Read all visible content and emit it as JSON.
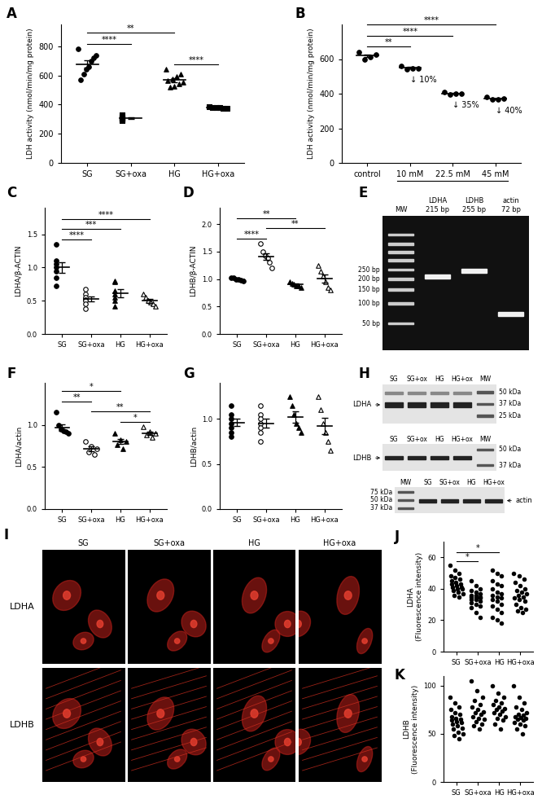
{
  "chart_data": [
    {
      "panel": "A",
      "type": "scatter",
      "color": "#000000",
      "ylabel": "LDH activity (nmol/min/mg protein)",
      "ylim": [
        0,
        950
      ],
      "yticks": [
        0,
        200,
        400,
        600,
        800
      ],
      "series": [
        {
          "name": "SG",
          "marker": "circle",
          "values": [
            780,
            740,
            720,
            700,
            660,
            640,
            610,
            570
          ],
          "mean": 677,
          "error": 25
        },
        {
          "name": "SG+oxa",
          "marker": "square",
          "values": [
            330,
            315,
            310,
            305,
            300,
            295,
            290
          ],
          "mean": 306,
          "error": 5
        },
        {
          "name": "HG",
          "marker": "triangle",
          "values": [
            640,
            610,
            590,
            575,
            565,
            555,
            540,
            525,
            520
          ],
          "mean": 569,
          "error": 13
        },
        {
          "name": "HG+oxa",
          "marker": "square",
          "values": [
            385,
            382,
            380,
            378,
            376,
            374
          ],
          "mean": 379,
          "error": 2
        }
      ],
      "significance": [
        {
          "from": 0,
          "to": 1,
          "label": "****"
        },
        {
          "from": 2,
          "to": 3,
          "label": "****"
        },
        {
          "from": 0,
          "to": 2,
          "label": "**"
        }
      ]
    },
    {
      "panel": "B",
      "type": "scatter",
      "color": "#000000",
      "ylabel": "LDH activity (nmol/min/mg protein)",
      "ylim": [
        0,
        800
      ],
      "yticks": [
        0,
        200,
        400,
        600
      ],
      "series": [
        {
          "name": "control",
          "marker": "circle",
          "values": [
            640,
            625,
            610,
            600
          ],
          "mean": 619,
          "error": 9
        },
        {
          "name": "10 mM",
          "marker": "circle",
          "values": [
            560,
            548,
            545,
            543
          ],
          "mean": 549,
          "error": 4
        },
        {
          "name": "22.5 mM",
          "marker": "circle",
          "values": [
            410,
            400,
            398,
            395
          ],
          "mean": 401,
          "error": 3
        },
        {
          "name": "45 mM",
          "marker": "circle",
          "values": [
            380,
            372,
            368,
            365
          ],
          "mean": 371,
          "error": 3
        }
      ],
      "annotations": [
        {
          "series": 1,
          "text": "↓ 10%"
        },
        {
          "series": 2,
          "text": "↓ 35%"
        },
        {
          "series": 3,
          "text": "↓ 40%"
        }
      ],
      "significance": [
        {
          "from": 0,
          "to": 1,
          "label": "**"
        },
        {
          "from": 0,
          "to": 2,
          "label": "****"
        },
        {
          "from": 0,
          "to": 3,
          "label": "****"
        }
      ]
    },
    {
      "panel": "C",
      "type": "scatter",
      "color": "#000000",
      "ylabel": "LDHA/β-ACTIN",
      "ylim": [
        0,
        1.9
      ],
      "yticks": [
        {
          "value": 0,
          "label": "0.0"
        },
        0.5,
        {
          "value": 1,
          "label": "1.0"
        },
        1.5
      ],
      "series": [
        {
          "name": "SG",
          "marker": "circle",
          "values": [
            1.35,
            1.1,
            1.05,
            1.0,
            0.95,
            0.85,
            0.72
          ],
          "mean": 1.0,
          "error": 0.08
        },
        {
          "name": "SG+oxa",
          "marker": "open circle",
          "values": [
            0.68,
            0.6,
            0.55,
            0.52,
            0.5,
            0.45,
            0.38
          ],
          "mean": 0.53,
          "error": 0.04
        },
        {
          "name": "HG",
          "marker": "triangle",
          "values": [
            0.8,
            0.78,
            0.65,
            0.6,
            0.55,
            0.5,
            0.42
          ],
          "mean": 0.61,
          "error": 0.06
        },
        {
          "name": "HG+oxa",
          "marker": "open triangle",
          "values": [
            0.6,
            0.55,
            0.5,
            0.48,
            0.45,
            0.42
          ],
          "mean": 0.5,
          "error": 0.03
        }
      ],
      "significance": [
        {
          "from": 0,
          "to": 1,
          "label": "****"
        },
        {
          "from": 0,
          "to": 2,
          "label": "***"
        },
        {
          "from": 0,
          "to": 3,
          "label": "****"
        }
      ]
    },
    {
      "panel": "D",
      "type": "scatter",
      "color": "#000000",
      "ylabel": "LDHB/β-ACTIN",
      "ylim": [
        0,
        2.3
      ],
      "yticks": [
        {
          "value": 0,
          "label": "0.0"
        },
        0.5,
        {
          "value": 1,
          "label": "1.0"
        },
        1.5,
        {
          "value": 2,
          "label": "2.0"
        }
      ],
      "series": [
        {
          "name": "SG",
          "marker": "circle",
          "values": [
            1.03,
            1.02,
            1.0,
            1.0,
            0.98,
            0.97
          ],
          "mean": 1.0,
          "error": 0.01
        },
        {
          "name": "SG+oxa",
          "marker": "open circle",
          "values": [
            1.65,
            1.5,
            1.42,
            1.38,
            1.3,
            1.2
          ],
          "mean": 1.41,
          "error": 0.06
        },
        {
          "name": "HG",
          "marker": "triangle",
          "values": [
            0.95,
            0.92,
            0.9,
            0.88,
            0.87,
            0.85
          ],
          "mean": 0.9,
          "error": 0.02
        },
        {
          "name": "HG+oxa",
          "marker": "open triangle",
          "values": [
            1.25,
            1.15,
            1.05,
            0.95,
            0.85,
            0.8
          ],
          "mean": 1.01,
          "error": 0.07
        }
      ],
      "significance": [
        {
          "from": 0,
          "to": 1,
          "label": "****"
        },
        {
          "from": 1,
          "to": 3,
          "label": "**"
        },
        {
          "from": 0,
          "to": 2,
          "label": "**"
        }
      ]
    },
    {
      "panel": "E",
      "type": "image",
      "lanes": [
        {
          "name": "MW"
        },
        {
          "name": "LDHA",
          "size": "215 bp"
        },
        {
          "name": "LDHB",
          "size": "255 bp"
        },
        {
          "name": "actin",
          "size": "72 bp"
        }
      ],
      "ladder": [
        "250 bp",
        "200 bp",
        "150 bp",
        "100 bp",
        "50 bp"
      ]
    },
    {
      "panel": "F",
      "type": "scatter",
      "color": "#000000",
      "ylabel": "LDHA/actin",
      "ylim": [
        0,
        1.5
      ],
      "yticks": [
        {
          "value": 0,
          "label": "0.0"
        },
        0.5,
        {
          "value": 1,
          "label": "1.0"
        }
      ],
      "series": [
        {
          "name": "SG",
          "marker": "circle",
          "values": [
            1.15,
            1.0,
            0.95,
            0.93,
            0.92,
            0.9
          ],
          "mean": 0.97,
          "error": 0.04
        },
        {
          "name": "SG+oxa",
          "marker": "open circle",
          "values": [
            0.8,
            0.75,
            0.72,
            0.68,
            0.65
          ],
          "mean": 0.72,
          "error": 0.03
        },
        {
          "name": "HG",
          "marker": "triangle",
          "values": [
            0.9,
            0.82,
            0.8,
            0.76,
            0.72
          ],
          "mean": 0.8,
          "error": 0.03
        },
        {
          "name": "HG+oxa",
          "marker": "open triangle",
          "values": [
            0.98,
            0.92,
            0.9,
            0.88,
            0.85
          ],
          "mean": 0.9,
          "error": 0.02
        }
      ],
      "significance": [
        {
          "from": 2,
          "to": 3,
          "label": "*"
        },
        {
          "from": 1,
          "to": 3,
          "label": "**"
        },
        {
          "from": 0,
          "to": 1,
          "label": "**"
        },
        {
          "from": 0,
          "to": 2,
          "label": "*"
        }
      ]
    },
    {
      "panel": "G",
      "type": "scatter",
      "color": "#000000",
      "ylabel": "LDHB/actin",
      "ylim": [
        0,
        1.4
      ],
      "yticks": [
        {
          "value": 0,
          "label": "0.0"
        },
        0.5,
        {
          "value": 1,
          "label": "1.0"
        }
      ],
      "series": [
        {
          "name": "SG",
          "marker": "circle",
          "values": [
            1.15,
            1.05,
            1.0,
            0.95,
            0.9,
            0.85,
            0.8
          ],
          "mean": 0.96,
          "error": 0.04
        },
        {
          "name": "SG+oxa",
          "marker": "open circle",
          "values": [
            1.15,
            1.05,
            1.0,
            0.95,
            0.9,
            0.85,
            0.75
          ],
          "mean": 0.95,
          "error": 0.05
        },
        {
          "name": "HG",
          "marker": "triangle",
          "values": [
            1.25,
            1.15,
            1.05,
            0.95,
            0.9,
            0.85
          ],
          "mean": 1.02,
          "error": 0.06
        },
        {
          "name": "HG+oxa",
          "marker": "open triangle",
          "values": [
            1.25,
            1.1,
            0.95,
            0.85,
            0.75,
            0.65
          ],
          "mean": 0.92,
          "error": 0.09
        }
      ]
    },
    {
      "panel": "H",
      "type": "image",
      "blots": [
        {
          "label": "LDHA",
          "lanes": [
            "SG",
            "SG+ox",
            "HG",
            "HG+ox",
            "MW"
          ],
          "markers": [
            "50 kDa",
            "37 kDa",
            "25 kDa"
          ]
        },
        {
          "label": "LDHB",
          "lanes": [
            "SG",
            "SG+ox",
            "HG",
            "HG+ox",
            "MW"
          ],
          "markers": [
            "50 kDa",
            "37 kDa"
          ]
        },
        {
          "label": "actin",
          "lanes": [
            "MW",
            "SG",
            "SG+ox",
            "HG",
            "HG+ox"
          ],
          "markers": [
            "75 kDa",
            "50 kDa",
            "37 kDa"
          ]
        }
      ]
    },
    {
      "panel": "I",
      "type": "image",
      "columns": [
        "SG",
        "SG+oxa",
        "HG",
        "HG+oxa"
      ],
      "rows": [
        "LDHA",
        "LDHB"
      ]
    },
    {
      "panel": "J",
      "type": "scatter",
      "color": "#000000",
      "ylabel": "LDHA\n(Fluorescence intensity)",
      "ylim": [
        0,
        70
      ],
      "yticks": [
        0,
        20,
        40,
        60
      ],
      "series": [
        {
          "name": "SG",
          "marker": "circle",
          "values": [
            55,
            52,
            50,
            48,
            47,
            46,
            45,
            44,
            43,
            43,
            42,
            41,
            41,
            40,
            40,
            39,
            38,
            37,
            36,
            35
          ]
        },
        {
          "name": "SG+oxa",
          "marker": "circle",
          "values": [
            45,
            42,
            40,
            39,
            38,
            37,
            36,
            36,
            35,
            35,
            34,
            34,
            33,
            33,
            32,
            31,
            30,
            29,
            28,
            25,
            22
          ]
        },
        {
          "name": "HG",
          "marker": "circle",
          "values": [
            52,
            50,
            48,
            45,
            43,
            42,
            40,
            38,
            37,
            36,
            35,
            34,
            33,
            32,
            30,
            29,
            27,
            25,
            22,
            20,
            18
          ]
        },
        {
          "name": "HG+oxa",
          "marker": "circle",
          "values": [
            50,
            48,
            46,
            44,
            42,
            40,
            39,
            38,
            37,
            36,
            35,
            34,
            33,
            32,
            30,
            28,
            27,
            26,
            25
          ]
        }
      ],
      "significance": [
        {
          "from": 0,
          "to": 1,
          "label": "*"
        },
        {
          "from": 0,
          "to": 2,
          "label": "*"
        }
      ]
    },
    {
      "panel": "K",
      "type": "scatter",
      "color": "#000000",
      "ylabel": "LDHB\n(Fluorescence intensity)",
      "ylim": [
        0,
        110
      ],
      "yticks": [
        0,
        50,
        100
      ],
      "series": [
        {
          "name": "SG",
          "marker": "circle",
          "values": [
            88,
            82,
            78,
            75,
            72,
            70,
            68,
            66,
            65,
            64,
            63,
            62,
            60,
            58,
            56,
            55,
            52,
            50,
            48,
            45
          ]
        },
        {
          "name": "SG+oxa",
          "marker": "circle",
          "values": [
            105,
            95,
            88,
            85,
            80,
            78,
            75,
            73,
            72,
            70,
            68,
            66,
            65,
            63,
            60,
            58,
            55
          ]
        },
        {
          "name": "HG",
          "marker": "circle",
          "values": [
            100,
            92,
            88,
            85,
            82,
            80,
            78,
            76,
            75,
            74,
            72,
            70,
            68,
            66,
            64,
            60,
            55
          ]
        },
        {
          "name": "HG+oxa",
          "marker": "circle",
          "values": [
            100,
            88,
            82,
            78,
            75,
            72,
            70,
            69,
            68,
            67,
            66,
            65,
            64,
            62,
            60,
            58,
            55,
            50
          ]
        }
      ]
    }
  ]
}
